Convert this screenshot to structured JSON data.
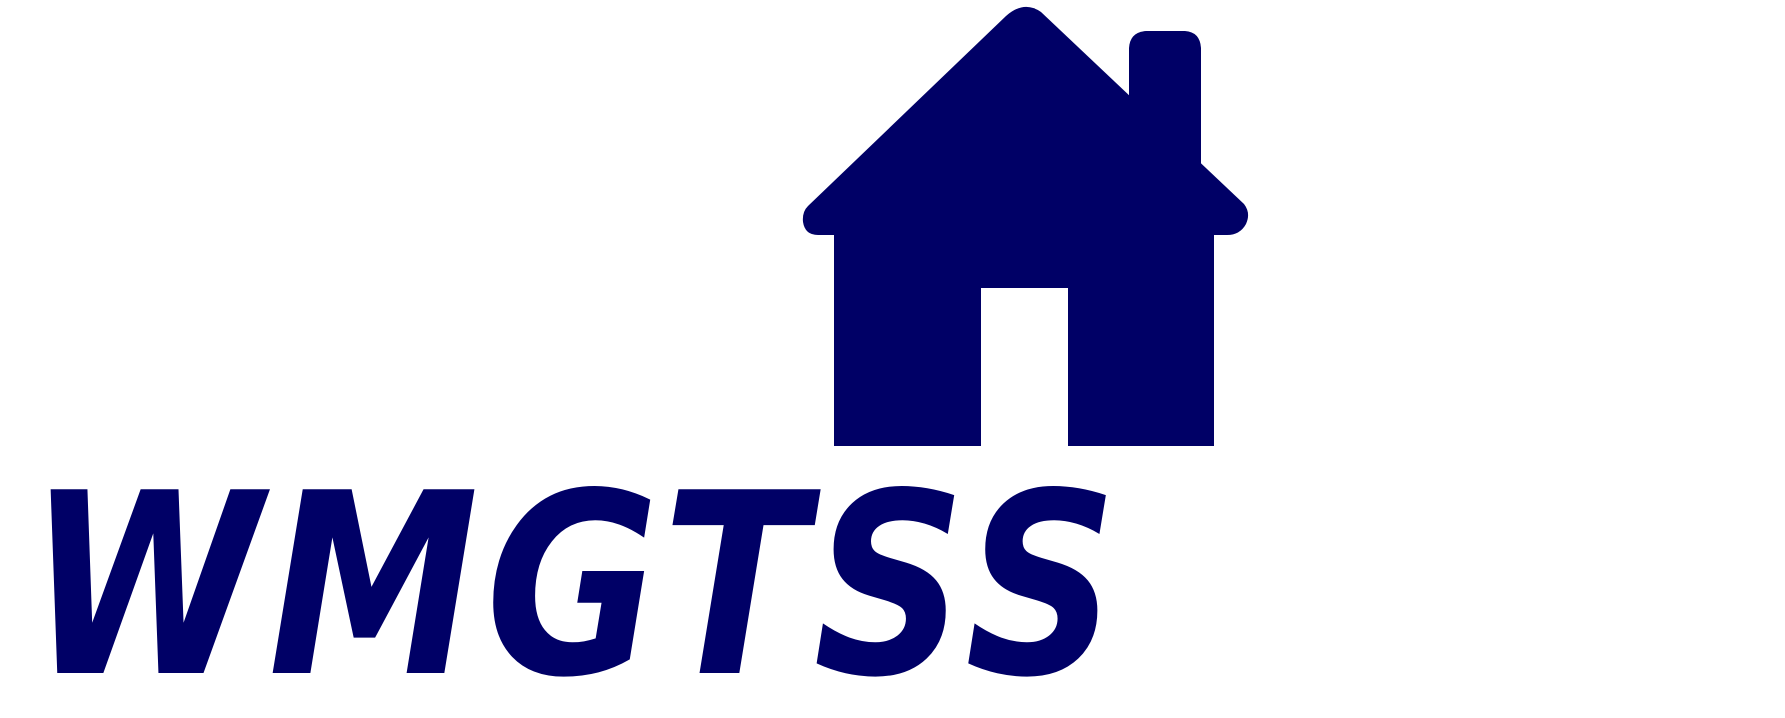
{
  "logo": {
    "icon": "house-with-chimney-icon",
    "wordmark": "WMGTSS",
    "colors": {
      "primary": "#000066",
      "background": "#ffffff"
    }
  }
}
